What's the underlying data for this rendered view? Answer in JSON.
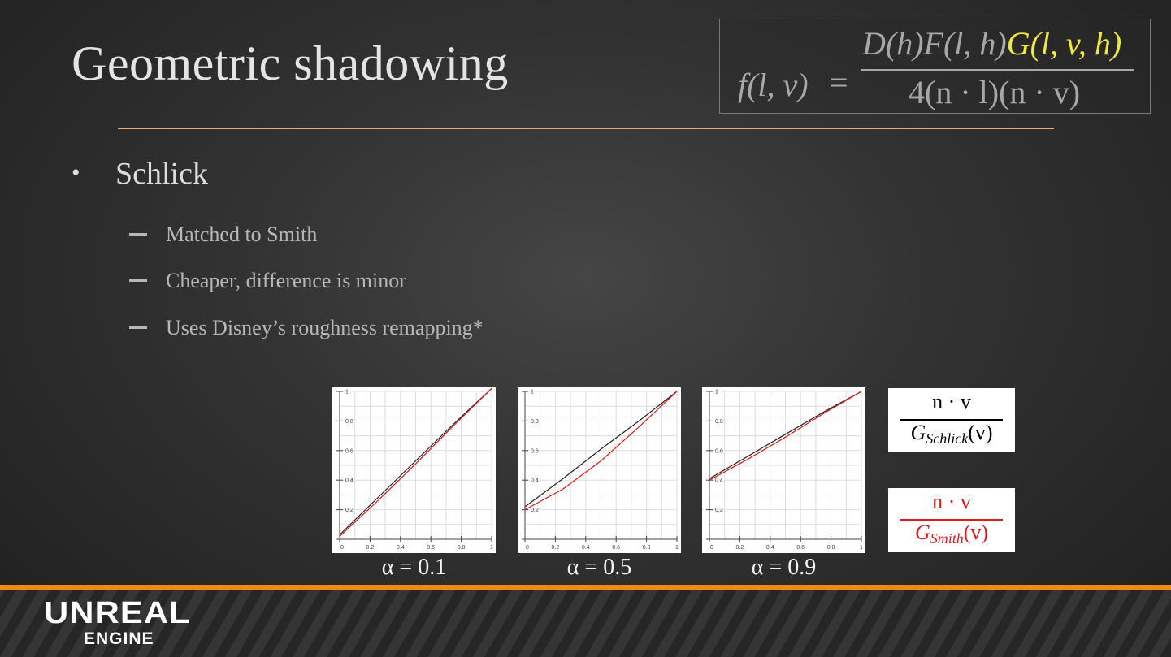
{
  "slide": {
    "title": "Geometric shadowing",
    "formula": {
      "lhs": "f(l, v)",
      "eq": "=",
      "numerator_plain": "D(h)F(l, h)",
      "numerator_highlight": "G(l, v, h)",
      "denominator": "4(n · l)(n · v)"
    },
    "bullet": "Schlick",
    "subbullets": [
      "Matched to Smith",
      "Cheaper, difference is minor",
      "Uses Disney’s roughness remapping*"
    ],
    "legend": [
      {
        "numerator": "n · v",
        "denominator": "G",
        "subscript": "Schlick",
        "suffix": "(v)",
        "color": "#000000"
      },
      {
        "numerator": "n · v",
        "denominator": "G",
        "subscript": "Smith",
        "suffix": "(v)",
        "color": "#e01818"
      }
    ],
    "colors": {
      "accent_rule": "#e4ad7c",
      "highlight": "#f0e83a",
      "footer_strip": "#ef8a12",
      "schlick_curve": "#222222",
      "smith_curve": "#e01818"
    },
    "logo": {
      "main": "UNREAL",
      "sub": "ENGINE"
    }
  },
  "chart_data": [
    {
      "type": "line",
      "title": "α = 0.1",
      "xlim": [
        0,
        1
      ],
      "ylim": [
        0,
        1
      ],
      "x_ticks": [
        "0.2",
        "0.4",
        "0.6",
        "0.8",
        "1"
      ],
      "y_ticks": [
        "0.2",
        "0.4",
        "0.6",
        "0.8",
        "1"
      ],
      "series": [
        {
          "color": "#222222",
          "x": [
            0,
            0.25,
            0.5,
            0.75,
            1
          ],
          "y": [
            0.03,
            0.28,
            0.53,
            0.78,
            1.02
          ]
        },
        {
          "color": "#e01818",
          "x": [
            0,
            0.25,
            0.5,
            0.75,
            1
          ],
          "y": [
            0.02,
            0.26,
            0.51,
            0.77,
            1.02
          ]
        }
      ]
    },
    {
      "type": "line",
      "title": "α = 0.5",
      "xlim": [
        0,
        1
      ],
      "ylim": [
        0,
        1
      ],
      "x_ticks": [
        "0.2",
        "0.4",
        "0.6",
        "0.8",
        "1"
      ],
      "y_ticks": [
        "0.2",
        "0.4",
        "0.6",
        "0.8",
        "1"
      ],
      "series": [
        {
          "color": "#222222",
          "x": [
            0,
            0.25,
            0.5,
            0.75,
            1
          ],
          "y": [
            0.22,
            0.41,
            0.61,
            0.8,
            1.0
          ]
        },
        {
          "color": "#e01818",
          "x": [
            0,
            0.25,
            0.5,
            0.75,
            1
          ],
          "y": [
            0.2,
            0.34,
            0.53,
            0.76,
            1.0
          ]
        }
      ]
    },
    {
      "type": "line",
      "title": "α = 0.9",
      "xlim": [
        0,
        1
      ],
      "ylim": [
        0,
        1
      ],
      "x_ticks": [
        "0.2",
        "0.4",
        "0.6",
        "0.8",
        "1"
      ],
      "y_ticks": [
        "0.2",
        "0.4",
        "0.6",
        "0.8",
        "1"
      ],
      "series": [
        {
          "color": "#222222",
          "x": [
            0,
            0.25,
            0.5,
            0.75,
            1
          ],
          "y": [
            0.41,
            0.56,
            0.71,
            0.86,
            1.0
          ]
        },
        {
          "color": "#e01818",
          "x": [
            0,
            0.25,
            0.5,
            0.75,
            1
          ],
          "y": [
            0.4,
            0.54,
            0.69,
            0.85,
            1.0
          ]
        }
      ]
    }
  ]
}
